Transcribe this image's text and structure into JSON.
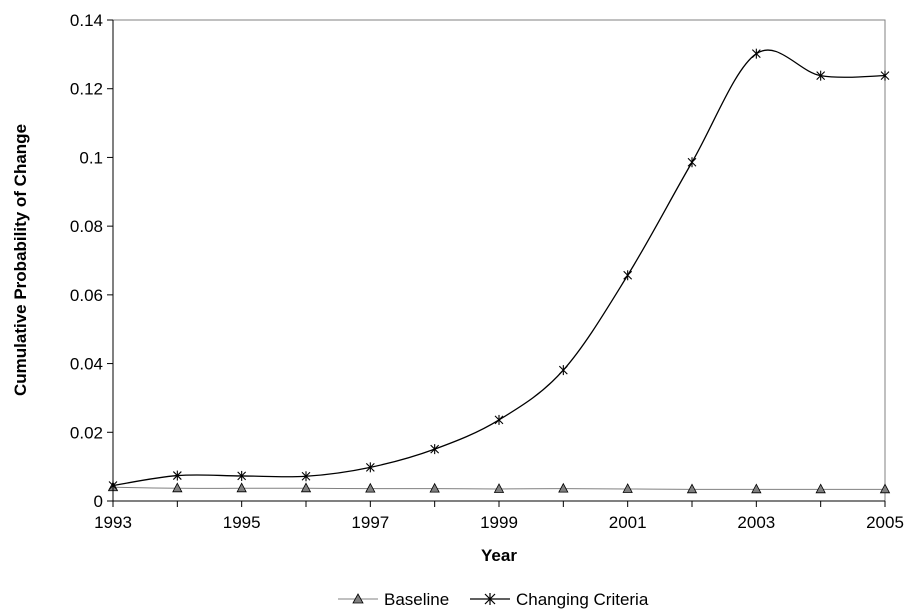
{
  "chart_data": {
    "type": "line",
    "title": "",
    "xlabel": "Year",
    "ylabel": "Cumulative Probability of Change",
    "x": [
      1993,
      1994,
      1995,
      1996,
      1997,
      1998,
      1999,
      2000,
      2001,
      2002,
      2003,
      2004,
      2005
    ],
    "xlim": [
      1993,
      2005
    ],
    "ylim": [
      0,
      0.14
    ],
    "x_ticks": [
      "1993",
      "1995",
      "1997",
      "1999",
      "2001",
      "2003",
      "2005"
    ],
    "y_ticks": [
      "0",
      "0.02",
      "0.04",
      "0.06",
      "0.08",
      "0.1",
      "0.12",
      "0.14"
    ],
    "grid": false,
    "legend_position": "bottom",
    "series": [
      {
        "name": "Baseline",
        "marker": "triangle",
        "color": "#808080",
        "values": [
          0.004,
          0.0037,
          0.0037,
          0.0037,
          0.0036,
          0.0036,
          0.0035,
          0.0036,
          0.0035,
          0.0034,
          0.0034,
          0.0034,
          0.0034
        ]
      },
      {
        "name": "Changing Criteria",
        "marker": "asterisk",
        "color": "#000000",
        "values": [
          0.0045,
          0.0074,
          0.0073,
          0.0072,
          0.0098,
          0.0151,
          0.0236,
          0.0381,
          0.0657,
          0.0986,
          0.1302,
          0.1238,
          0.1238
        ]
      }
    ]
  }
}
